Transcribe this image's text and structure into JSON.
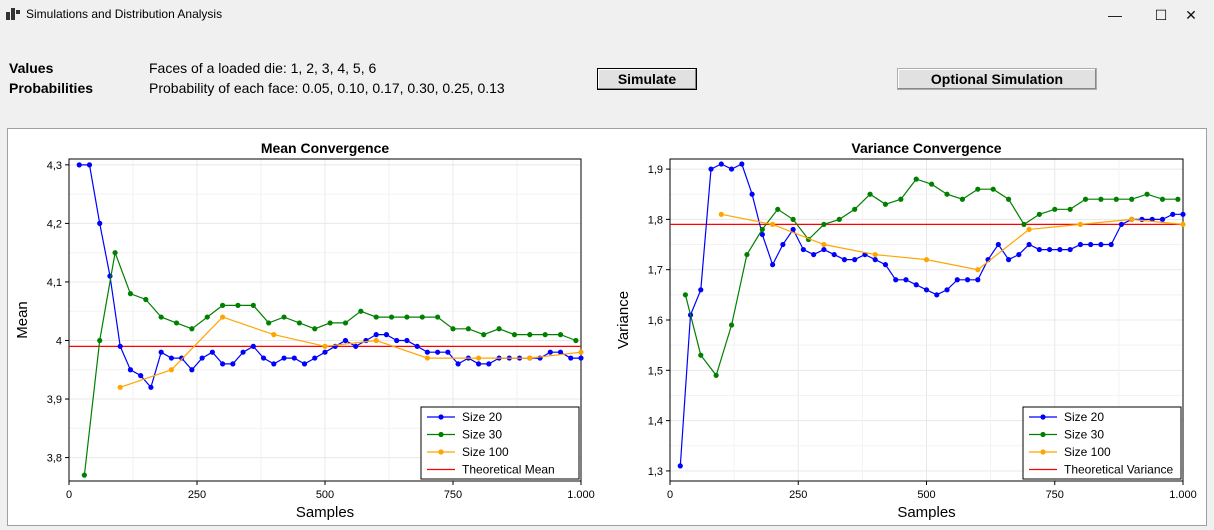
{
  "window": {
    "title": "Simulations and Distribution Analysis",
    "minimize_glyph": "—",
    "maximize_glyph": "☐",
    "close_glyph": "✕"
  },
  "info": {
    "values_label": "Values",
    "values_text": "Faces of a loaded die: 1, 2, 3, 4, 5, 6",
    "probabilities_label": "Probabilities",
    "probabilities_text": "Probability of each face: 0.05, 0.10, 0.17, 0.30, 0.25, 0.13"
  },
  "buttons": {
    "simulate": "Simulate",
    "optional": "Optional Simulation"
  },
  "colors": {
    "size20": "#0000ff",
    "size30": "#008000",
    "size100": "#ffa500",
    "theoretical": "#ff0000"
  },
  "chart_data": [
    {
      "type": "line",
      "title": "Mean Convergence",
      "xlabel": "Samples",
      "ylabel": "Mean",
      "xlim": [
        0,
        1000
      ],
      "ylim": [
        3.76,
        4.31
      ],
      "xticks": [
        0,
        250,
        500,
        750,
        1000
      ],
      "xtick_labels": [
        "0",
        "250",
        "500",
        "750",
        "1.000"
      ],
      "yticks": [
        3.8,
        3.9,
        4.0,
        4.1,
        4.2,
        4.3
      ],
      "ytick_labels": [
        "3,8",
        "3,9",
        "4",
        "4,1",
        "4,2",
        "4,3"
      ],
      "grid": true,
      "legend_position": "bottom-right",
      "series": [
        {
          "name": "Size 20",
          "color": "#0000ff",
          "x": [
            20,
            40,
            60,
            80,
            100,
            120,
            140,
            160,
            180,
            200,
            220,
            240,
            260,
            280,
            300,
            320,
            340,
            360,
            380,
            400,
            420,
            440,
            460,
            480,
            500,
            520,
            540,
            560,
            580,
            600,
            620,
            640,
            660,
            680,
            700,
            720,
            740,
            760,
            780,
            800,
            820,
            840,
            860,
            880,
            900,
            920,
            940,
            960,
            980,
            1000
          ],
          "y": [
            4.3,
            4.3,
            4.2,
            4.11,
            3.99,
            3.95,
            3.94,
            3.92,
            3.98,
            3.97,
            3.97,
            3.95,
            3.97,
            3.98,
            3.96,
            3.96,
            3.98,
            3.99,
            3.97,
            3.96,
            3.97,
            3.97,
            3.96,
            3.97,
            3.98,
            3.99,
            4.0,
            3.99,
            4.0,
            4.01,
            4.01,
            4.0,
            4.0,
            3.99,
            3.98,
            3.98,
            3.98,
            3.96,
            3.97,
            3.96,
            3.96,
            3.97,
            3.97,
            3.97,
            3.97,
            3.97,
            3.98,
            3.98,
            3.97,
            3.97
          ]
        },
        {
          "name": "Size 30",
          "color": "#008000",
          "x": [
            30,
            60,
            90,
            120,
            150,
            180,
            210,
            240,
            270,
            300,
            330,
            360,
            390,
            420,
            450,
            480,
            510,
            540,
            570,
            600,
            630,
            660,
            690,
            720,
            750,
            780,
            810,
            840,
            870,
            900,
            930,
            960,
            990
          ],
          "y": [
            3.77,
            4.0,
            4.15,
            4.08,
            4.07,
            4.04,
            4.03,
            4.02,
            4.04,
            4.06,
            4.06,
            4.06,
            4.03,
            4.04,
            4.03,
            4.02,
            4.03,
            4.03,
            4.05,
            4.04,
            4.04,
            4.04,
            4.04,
            4.04,
            4.02,
            4.02,
            4.01,
            4.02,
            4.01,
            4.01,
            4.01,
            4.01,
            4.0
          ]
        },
        {
          "name": "Size 100",
          "color": "#ffa500",
          "x": [
            100,
            200,
            300,
            400,
            500,
            600,
            700,
            800,
            900,
            1000
          ],
          "y": [
            3.92,
            3.95,
            4.04,
            4.01,
            3.99,
            4.0,
            3.97,
            3.97,
            3.97,
            3.98
          ]
        }
      ],
      "reference": {
        "name": "Theoretical Mean",
        "value": 3.99,
        "color": "#ff0000"
      }
    },
    {
      "type": "line",
      "title": "Variance Convergence",
      "xlabel": "Samples",
      "ylabel": "Variance",
      "xlim": [
        0,
        1000
      ],
      "ylim": [
        1.28,
        1.92
      ],
      "xticks": [
        0,
        250,
        500,
        750,
        1000
      ],
      "xtick_labels": [
        "0",
        "250",
        "500",
        "750",
        "1.000"
      ],
      "yticks": [
        1.3,
        1.4,
        1.5,
        1.6,
        1.7,
        1.8,
        1.9
      ],
      "ytick_labels": [
        "1,3",
        "1,4",
        "1,5",
        "1,6",
        "1,7",
        "1,8",
        "1,9"
      ],
      "grid": true,
      "legend_position": "bottom-right",
      "series": [
        {
          "name": "Size 20",
          "color": "#0000ff",
          "x": [
            20,
            40,
            60,
            80,
            100,
            120,
            140,
            160,
            180,
            200,
            220,
            240,
            260,
            280,
            300,
            320,
            340,
            360,
            380,
            400,
            420,
            440,
            460,
            480,
            500,
            520,
            540,
            560,
            580,
            600,
            620,
            640,
            660,
            680,
            700,
            720,
            740,
            760,
            780,
            800,
            820,
            840,
            860,
            880,
            900,
            920,
            940,
            960,
            980,
            1000
          ],
          "y": [
            1.31,
            1.61,
            1.66,
            1.9,
            1.91,
            1.9,
            1.91,
            1.85,
            1.77,
            1.71,
            1.75,
            1.78,
            1.74,
            1.73,
            1.74,
            1.73,
            1.72,
            1.72,
            1.73,
            1.72,
            1.71,
            1.68,
            1.68,
            1.67,
            1.66,
            1.65,
            1.66,
            1.68,
            1.68,
            1.68,
            1.72,
            1.75,
            1.72,
            1.73,
            1.75,
            1.74,
            1.74,
            1.74,
            1.74,
            1.75,
            1.75,
            1.75,
            1.75,
            1.79,
            1.8,
            1.8,
            1.8,
            1.8,
            1.81,
            1.81
          ]
        },
        {
          "name": "Size 30",
          "color": "#008000",
          "x": [
            30,
            60,
            90,
            120,
            150,
            180,
            210,
            240,
            270,
            300,
            330,
            360,
            390,
            420,
            450,
            480,
            510,
            540,
            570,
            600,
            630,
            660,
            690,
            720,
            750,
            780,
            810,
            840,
            870,
            900,
            930,
            960,
            990
          ],
          "y": [
            1.65,
            1.53,
            1.49,
            1.59,
            1.73,
            1.78,
            1.82,
            1.8,
            1.76,
            1.79,
            1.8,
            1.82,
            1.85,
            1.83,
            1.84,
            1.88,
            1.87,
            1.85,
            1.84,
            1.86,
            1.86,
            1.84,
            1.79,
            1.81,
            1.82,
            1.82,
            1.84,
            1.84,
            1.84,
            1.84,
            1.85,
            1.84,
            1.84
          ]
        },
        {
          "name": "Size 100",
          "color": "#ffa500",
          "x": [
            100,
            200,
            300,
            400,
            500,
            600,
            700,
            800,
            900,
            1000
          ],
          "y": [
            1.81,
            1.79,
            1.75,
            1.73,
            1.72,
            1.7,
            1.78,
            1.79,
            1.8,
            1.79
          ]
        }
      ],
      "reference": {
        "name": "Theoretical Variance",
        "value": 1.79,
        "color": "#ff0000"
      }
    }
  ]
}
